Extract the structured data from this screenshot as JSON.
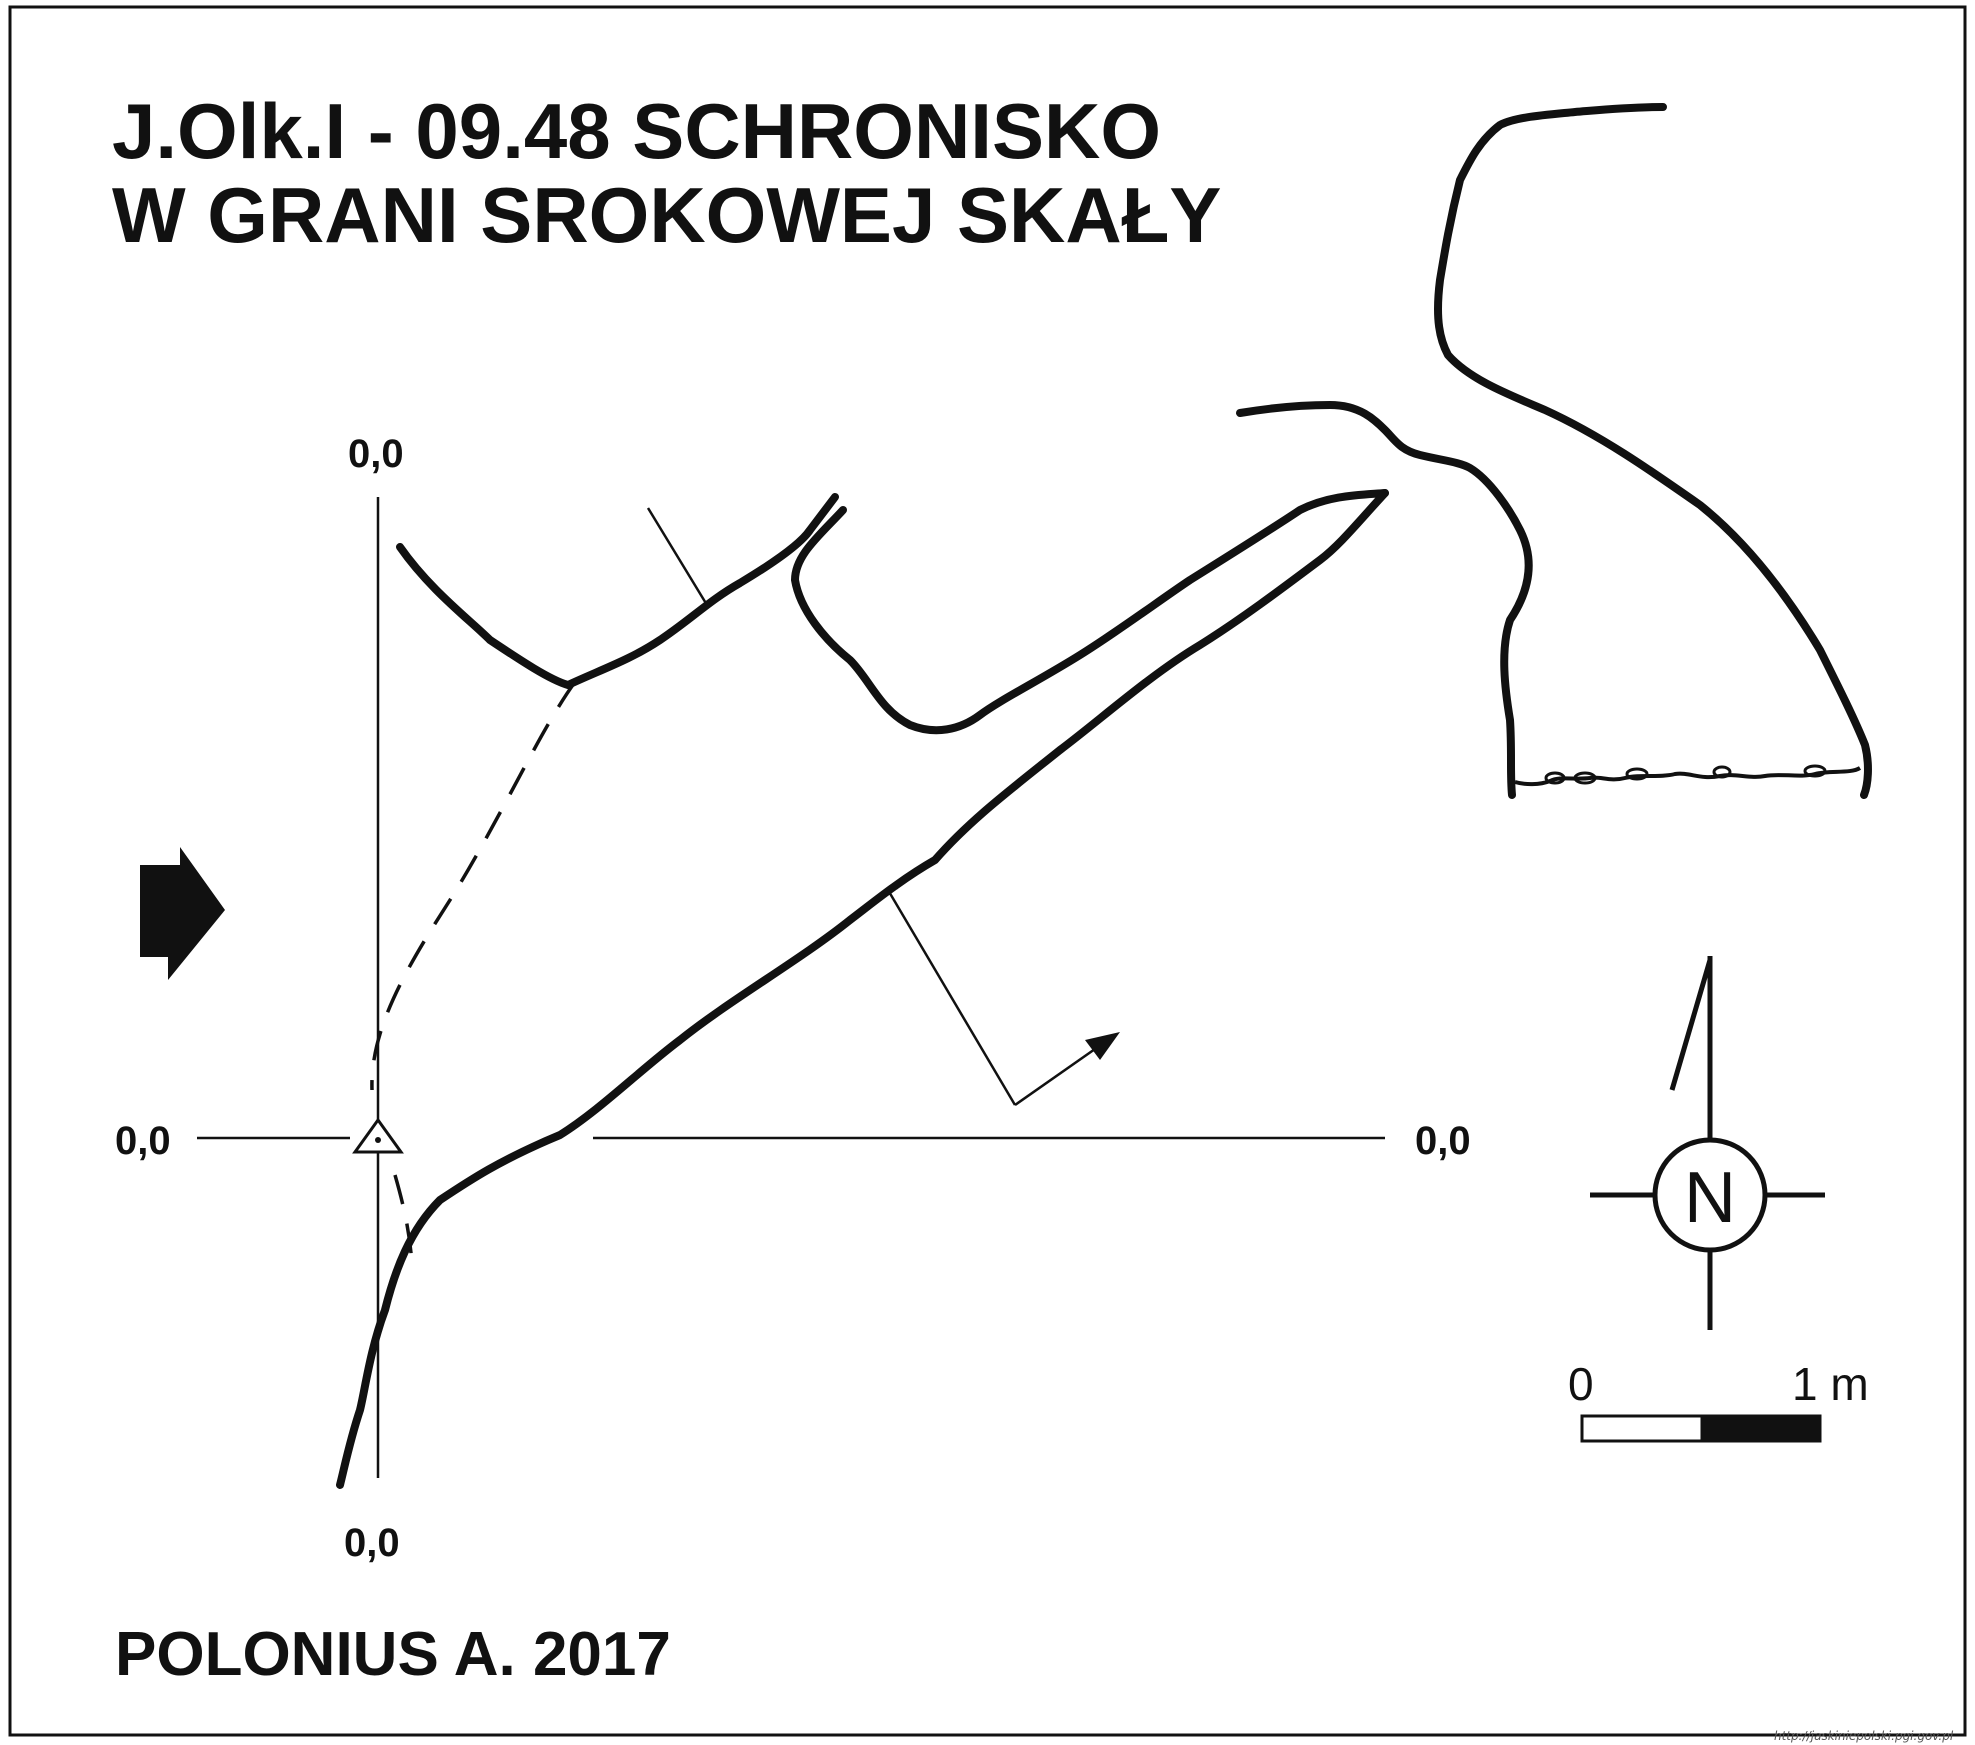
{
  "title": {
    "line1": "J.Olk.I - 09.48  SCHRONISKO",
    "line2": "W GRANI SROKOWEJ SKAŁY"
  },
  "author": "POLONIUS A. 2017",
  "coordinates": {
    "top": "0,0",
    "left": "0,0",
    "right": "0,0",
    "bottom": "0,0"
  },
  "north": {
    "label": "N",
    "icon": "compass-rose-icon"
  },
  "scale": {
    "start_label": "0",
    "end_label": "1 m"
  },
  "entrance_icon": "entrance-arrow-icon",
  "station_icon": "survey-station-triangle-icon",
  "credit_url": "http://jaskiniepolski.pgi.gov.pl",
  "colors": {
    "ink": "#111111",
    "background": "#ffffff"
  }
}
